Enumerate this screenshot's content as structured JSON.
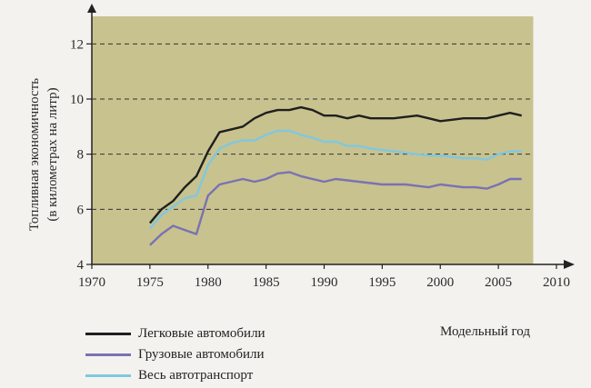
{
  "chart_data": {
    "type": "line",
    "xlabel": "Модельный год",
    "ylabel_line1": "Топливная экономичность",
    "ylabel_line2": "(в километрах на литр)",
    "xlim": [
      1970,
      2010
    ],
    "ylim": [
      4,
      13
    ],
    "x_ticks": [
      1970,
      1975,
      1980,
      1985,
      1990,
      1995,
      2000,
      2005,
      2010
    ],
    "y_ticks": [
      4,
      6,
      8,
      10,
      12
    ],
    "grid": "dashed horizontal",
    "colors": {
      "plot_bg": "#c8c28e",
      "cars": "#1f1f1f",
      "trucks": "#7a72b3",
      "all": "#7fc8e0"
    },
    "series": [
      {
        "name": "Легковые автомобили",
        "color": "#1f1f1f",
        "x": [
          1975,
          1976,
          1977,
          1978,
          1979,
          1980,
          1981,
          1982,
          1983,
          1984,
          1985,
          1986,
          1987,
          1988,
          1989,
          1990,
          1991,
          1992,
          1993,
          1994,
          1995,
          1996,
          1997,
          1998,
          1999,
          2000,
          2001,
          2002,
          2003,
          2004,
          2005,
          2006,
          2007
        ],
        "values": [
          5.5,
          6.0,
          6.3,
          6.8,
          7.2,
          8.1,
          8.8,
          8.9,
          9.0,
          9.3,
          9.5,
          9.6,
          9.6,
          9.7,
          9.6,
          9.4,
          9.4,
          9.3,
          9.4,
          9.3,
          9.3,
          9.3,
          9.35,
          9.4,
          9.3,
          9.2,
          9.25,
          9.3,
          9.3,
          9.3,
          9.4,
          9.5,
          9.4
        ]
      },
      {
        "name": "Грузовые автомобили",
        "color": "#7a72b3",
        "x": [
          1975,
          1976,
          1977,
          1978,
          1979,
          1980,
          1981,
          1982,
          1983,
          1984,
          1985,
          1986,
          1987,
          1988,
          1989,
          1990,
          1991,
          1992,
          1993,
          1994,
          1995,
          1996,
          1997,
          1998,
          1999,
          2000,
          2001,
          2002,
          2003,
          2004,
          2005,
          2006,
          2007
        ],
        "values": [
          4.7,
          5.1,
          5.4,
          5.25,
          5.1,
          6.5,
          6.9,
          7.0,
          7.1,
          7.0,
          7.1,
          7.3,
          7.35,
          7.2,
          7.1,
          7.0,
          7.1,
          7.05,
          7.0,
          6.95,
          6.9,
          6.9,
          6.9,
          6.85,
          6.8,
          6.9,
          6.85,
          6.8,
          6.8,
          6.75,
          6.9,
          7.1,
          7.1
        ]
      },
      {
        "name": "Весь автотранспорт",
        "color": "#7fc8e0",
        "x": [
          1975,
          1976,
          1977,
          1978,
          1979,
          1980,
          1981,
          1982,
          1983,
          1984,
          1985,
          1986,
          1987,
          1988,
          1989,
          1990,
          1991,
          1992,
          1993,
          1994,
          1995,
          1996,
          1997,
          1998,
          1999,
          2000,
          2001,
          2002,
          2003,
          2004,
          2005,
          2006,
          2007
        ],
        "values": [
          5.3,
          5.8,
          6.1,
          6.4,
          6.5,
          7.6,
          8.2,
          8.4,
          8.5,
          8.5,
          8.7,
          8.85,
          8.85,
          8.7,
          8.6,
          8.45,
          8.45,
          8.3,
          8.3,
          8.2,
          8.15,
          8.1,
          8.05,
          8.0,
          7.95,
          7.95,
          7.9,
          7.85,
          7.85,
          7.8,
          8.0,
          8.1,
          8.1
        ]
      }
    ]
  }
}
